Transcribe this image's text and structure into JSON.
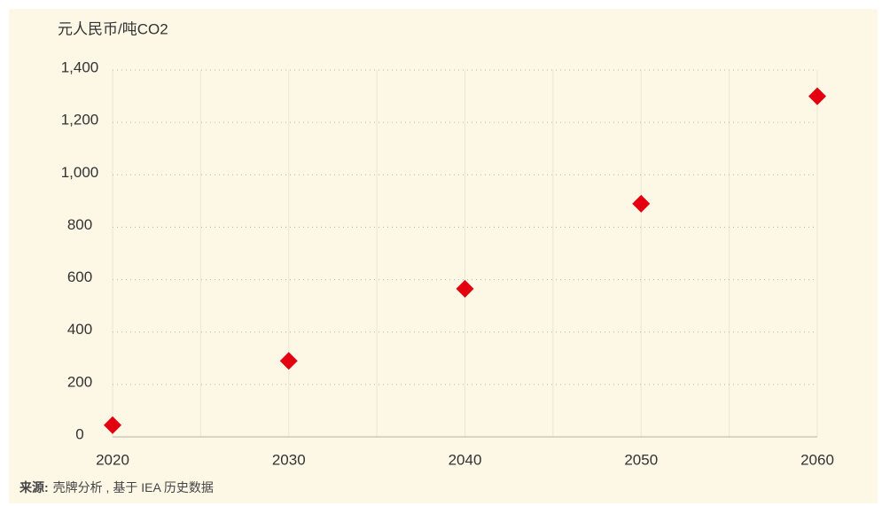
{
  "chart_data": {
    "type": "scatter",
    "y_label": "元人民币/吨CO2",
    "x": [
      2020,
      2030,
      2040,
      2050,
      2060
    ],
    "values": [
      45,
      290,
      565,
      890,
      1300
    ],
    "color": "#e3000f",
    "marker": "diamond",
    "xlim": [
      2020,
      2060
    ],
    "xticks": [
      2020,
      2030,
      2040,
      2050,
      2060
    ],
    "ylim": [
      0,
      1400
    ],
    "yticks": [
      0,
      200,
      400,
      600,
      800,
      {
        "value": 1000,
        "label": "1,000"
      },
      {
        "value": 1200,
        "label": "1,200"
      },
      {
        "value": 1400,
        "label": "1,400"
      }
    ],
    "grid": true,
    "source_label": "来源:",
    "source": "壳牌分析 , 基于 IEA 历史数据"
  }
}
